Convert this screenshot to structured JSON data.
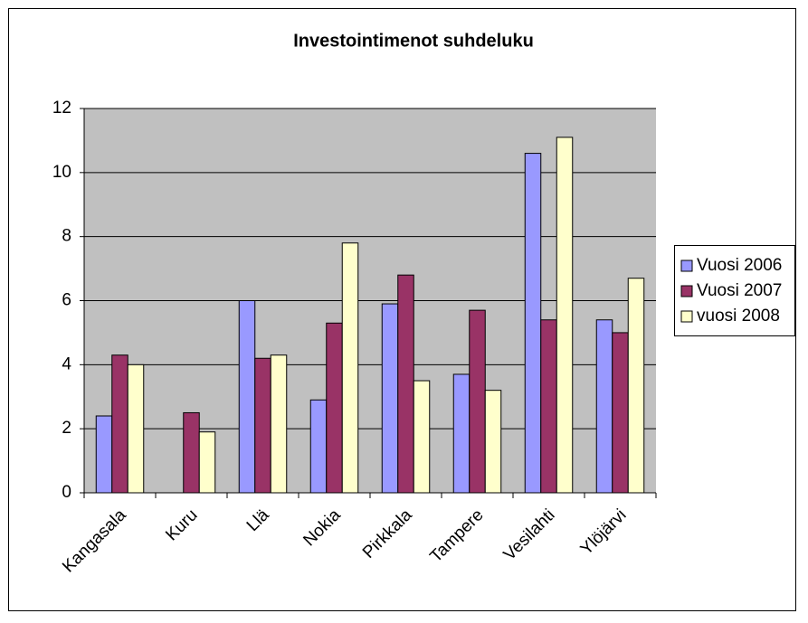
{
  "chart_data": {
    "type": "bar",
    "title": "Investointimenot suhdeluku",
    "categories": [
      "Kangasala",
      "Kuru",
      "Llä",
      "Nokia",
      "Pirkkala",
      "Tampere",
      "Vesilahti",
      "Ylöjärvi"
    ],
    "series": [
      {
        "name": "Vuosi 2006",
        "color": "#9999ff",
        "values": [
          2.4,
          0,
          6.0,
          2.9,
          5.9,
          3.7,
          10.6,
          5.4
        ]
      },
      {
        "name": "Vuosi 2007",
        "color": "#993366",
        "values": [
          4.3,
          2.5,
          4.2,
          5.3,
          6.8,
          5.7,
          5.4,
          5.0
        ]
      },
      {
        "name": "vuosi 2008",
        "color": "#ffffcc",
        "values": [
          4.0,
          1.9,
          4.3,
          7.8,
          3.5,
          3.2,
          11.1,
          6.7
        ]
      }
    ],
    "ylim": [
      0,
      12
    ],
    "yticks": [
      0,
      2,
      4,
      6,
      8,
      10,
      12
    ],
    "grid": true,
    "legend": "right"
  }
}
